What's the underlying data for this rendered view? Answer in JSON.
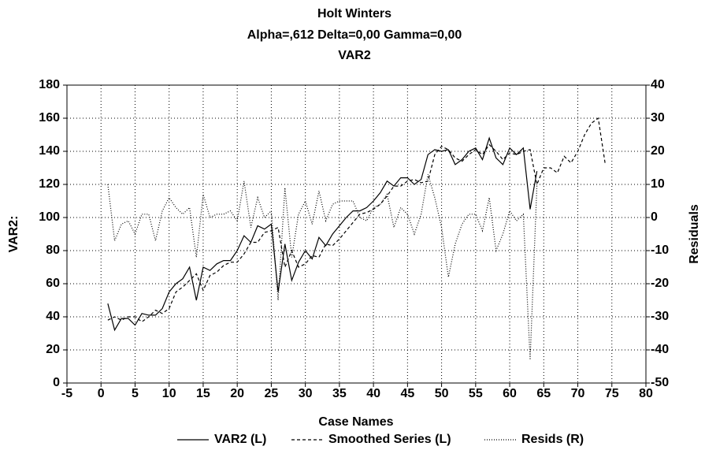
{
  "chart_data": {
    "type": "line",
    "title": "Holt Winters",
    "subtitle": "Alpha=,612 Delta=0,00 Gamma=0,00",
    "subtitle2": "VAR2",
    "x_label": "Case Names",
    "y_label": "VAR2:",
    "y2_label": "Residuals",
    "x": [
      1,
      2,
      3,
      4,
      5,
      6,
      7,
      8,
      9,
      10,
      11,
      12,
      13,
      14,
      15,
      16,
      17,
      18,
      19,
      20,
      21,
      22,
      23,
      24,
      25,
      26,
      27,
      28,
      29,
      30,
      31,
      32,
      33,
      34,
      35,
      36,
      37,
      38,
      39,
      40,
      41,
      42,
      43,
      44,
      45,
      46,
      47,
      48,
      49,
      50,
      51,
      52,
      53,
      54,
      55,
      56,
      57,
      58,
      59,
      60,
      61,
      62,
      63,
      64,
      65,
      66,
      67,
      68,
      69,
      70,
      71,
      72,
      73,
      74
    ],
    "series": [
      {
        "name": "VAR2 (L)",
        "color": "#000000",
        "style": "solid",
        "values": [
          48,
          32,
          39,
          39,
          35,
          42,
          41,
          41,
          45,
          55,
          60,
          63,
          70,
          50,
          70,
          68,
          72,
          74,
          74,
          80,
          89,
          85,
          95,
          93,
          96,
          55,
          84,
          62,
          73,
          80,
          75,
          88,
          83,
          90,
          95,
          100,
          104,
          104,
          106,
          110,
          115,
          122,
          119,
          124,
          124,
          120,
          123,
          138,
          141,
          140,
          141,
          132,
          135,
          140,
          142,
          135,
          148,
          136,
          132,
          142,
          138,
          142,
          105,
          128,
          null,
          null,
          null,
          null,
          null,
          null,
          null,
          null,
          null,
          null
        ]
      },
      {
        "name": "Smoothed Series (L)",
        "color": "#000000",
        "style": "dashed",
        "values": [
          38,
          40,
          38,
          40,
          40,
          37,
          40,
          44,
          42,
          45,
          55,
          58,
          62,
          66,
          56,
          65,
          67,
          71,
          73,
          73,
          78,
          85,
          85,
          91,
          92,
          94,
          70,
          80,
          70,
          72,
          77,
          76,
          84,
          83,
          87,
          92,
          97,
          102,
          103,
          105,
          108,
          113,
          119,
          119,
          122,
          123,
          121,
          122,
          138,
          143,
          141,
          136,
          134,
          138,
          141,
          138,
          144,
          140,
          135,
          139,
          138,
          140,
          141,
          120,
          130,
          130,
          127,
          137,
          133,
          140,
          150,
          157,
          160,
          133
        ]
      },
      {
        "name": "Resids (R)",
        "color": "#000000",
        "style": "dotted",
        "axis": "y2",
        "values": [
          10,
          -7,
          -2,
          -1,
          -5,
          1,
          1,
          -7,
          2,
          6,
          3,
          1,
          3,
          -12,
          7,
          0,
          1,
          1,
          2,
          -1,
          11,
          -3,
          6,
          0,
          2,
          -25,
          9,
          -12,
          1,
          5,
          -2,
          8,
          -1,
          4,
          5,
          5,
          5,
          0,
          -1,
          3,
          4,
          7,
          -3,
          3,
          1,
          -5,
          1,
          13,
          6,
          -3,
          -18,
          -8,
          -2,
          1,
          1,
          -4,
          6,
          -10,
          -5,
          2,
          -1,
          1,
          -43,
          10,
          null,
          null,
          null,
          null,
          null,
          null,
          null,
          null,
          null,
          null
        ]
      }
    ],
    "xlim": [
      -5,
      80
    ],
    "xticks": [
      -5,
      0,
      5,
      10,
      15,
      20,
      25,
      30,
      35,
      40,
      45,
      50,
      55,
      60,
      65,
      70,
      75,
      80
    ],
    "ylim": [
      0,
      180
    ],
    "yticks": [
      0,
      20,
      40,
      60,
      80,
      100,
      120,
      140,
      160,
      180
    ],
    "y2lim": [
      -50,
      40
    ],
    "y2ticks": [
      -50,
      -40,
      -30,
      -20,
      -10,
      0,
      10,
      20,
      30,
      40
    ],
    "grid": true
  }
}
